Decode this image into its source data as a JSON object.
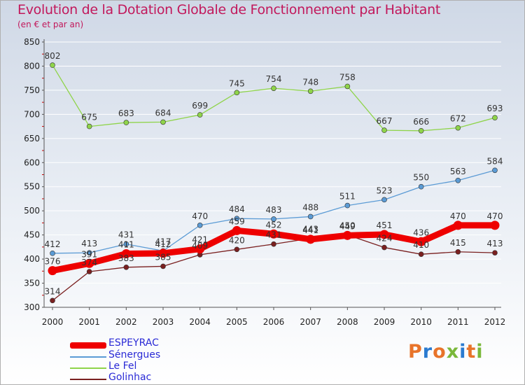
{
  "title": "Evolution de la Dotation Globale de Fonctionnement par Habitant",
  "subtitle": "(en € et par an)",
  "logo": "Proxiti",
  "colors": {
    "title": "#c2185b",
    "axis": "#555555",
    "grid": "#ffffff",
    "tick_red": "#cc0000",
    "legend_text": "#2a2ad6"
  },
  "chart_data": {
    "type": "line",
    "x": [
      "2000",
      "2001",
      "2002",
      "2003",
      "2004",
      "2005",
      "2006",
      "2007",
      "2008",
      "2009",
      "2010",
      "2011",
      "2012"
    ],
    "ylim": [
      300,
      850
    ],
    "yticks": [
      300,
      350,
      400,
      450,
      500,
      550,
      600,
      650,
      700,
      750,
      800,
      850
    ],
    "grid": true,
    "legend_position": "bottom-left",
    "series": [
      {
        "name": "ESPEYRAC",
        "color": "#ee0000",
        "stroke": 9,
        "marker": 6.5,
        "values": [
          376,
          391,
          411,
          412,
          421,
          459,
          452,
          441,
          449,
          451,
          436,
          470,
          470
        ],
        "labels": [
          "376",
          "391",
          "411",
          "412",
          "421",
          "459",
          "452",
          "441",
          "449",
          "451",
          "436",
          "470",
          "470"
        ]
      },
      {
        "name": "Sénergues",
        "color": "#5b9bd5",
        "stroke": 1.3,
        "marker": 3.5,
        "values": [
          412,
          413,
          431,
          417,
          470,
          484,
          483,
          488,
          511,
          523,
          550,
          563,
          584
        ],
        "labels": [
          "412",
          "413",
          "431",
          "417",
          "470",
          "484",
          "483",
          "488",
          "511",
          "523",
          "550",
          "563",
          "584"
        ]
      },
      {
        "name": "Le Fel",
        "color": "#8fd44a",
        "stroke": 1.3,
        "marker": 3.5,
        "values": [
          802,
          675,
          683,
          684,
          699,
          745,
          754,
          748,
          758,
          667,
          666,
          672,
          693
        ],
        "labels": [
          "802",
          "675",
          "683",
          "684",
          "699",
          "745",
          "754",
          "748",
          "758",
          "667",
          "666",
          "672",
          "693"
        ]
      },
      {
        "name": "Golinhac",
        "color": "#7a2020",
        "stroke": 1.3,
        "marker": 3.5,
        "values": [
          314,
          374,
          383,
          385,
          409,
          420,
          431,
          443,
          450,
          424,
          410,
          415,
          413
        ],
        "labels": [
          "314",
          "374",
          "383",
          "385",
          "409",
          "420",
          "431",
          "443",
          "450",
          "424",
          "410",
          "415",
          "413"
        ]
      }
    ]
  }
}
